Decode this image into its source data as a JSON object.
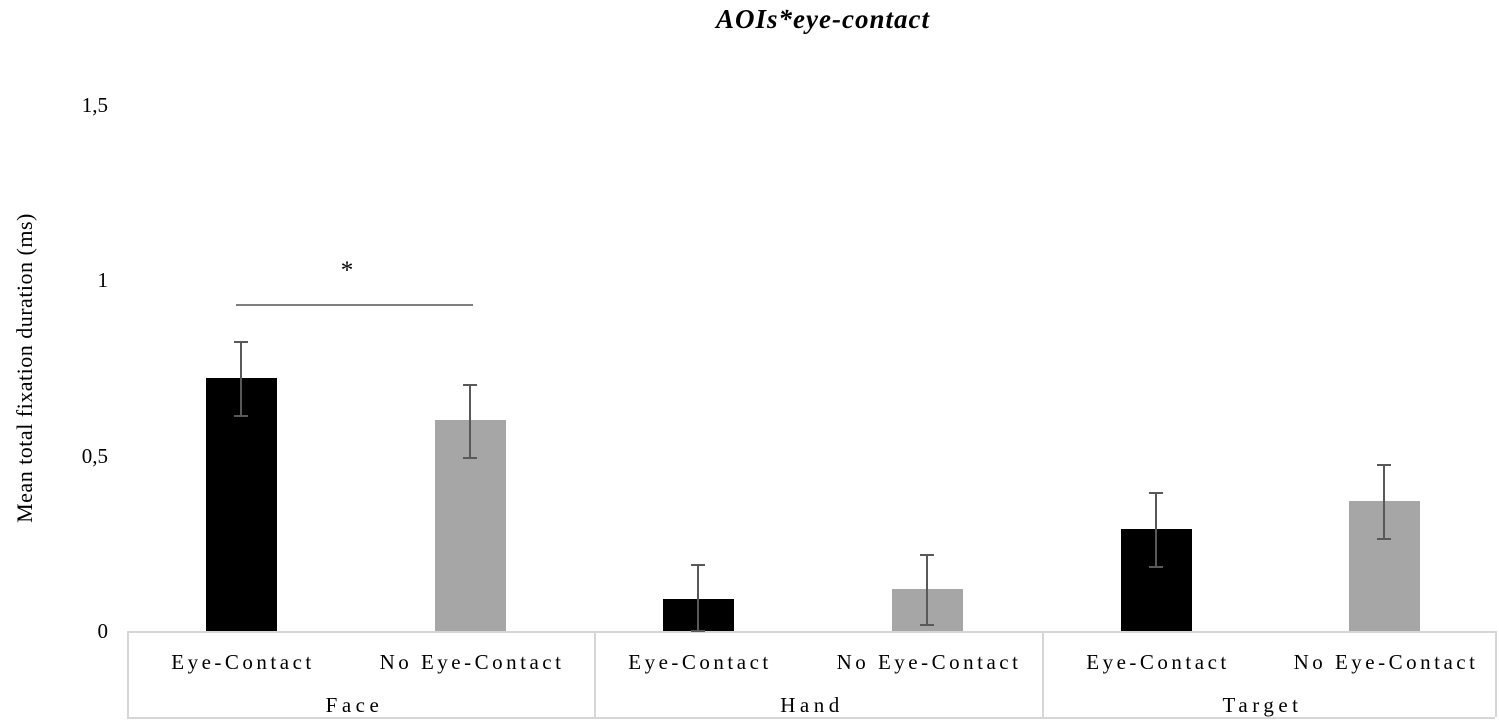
{
  "chart_title": "AOIs*eye-contact",
  "y_axis_title": "Mean total fixation duration (ms)",
  "significance_marker": "*",
  "chart_data": {
    "type": "bar",
    "title": "AOIs*eye-contact",
    "xlabel": "",
    "ylabel": "Mean total fixation duration (ms)",
    "ylim": [
      0,
      1.5
    ],
    "yticks": [
      {
        "value": 0,
        "label": "0"
      },
      {
        "value": 0.5,
        "label": "0,5"
      },
      {
        "value": 1,
        "label": "1"
      },
      {
        "value": 1.5,
        "label": "1,5"
      }
    ],
    "decimal_separator": ",",
    "grid": false,
    "legend_position": "none (series named on x-axis under each bar)",
    "categories": [
      "Face",
      "Hand",
      "Target"
    ],
    "series": [
      {
        "name": "Eye-Contact",
        "color": "#000000",
        "values": [
          0.72,
          0.09,
          0.29
        ],
        "errors": [
          0.105,
          0.1,
          0.105
        ]
      },
      {
        "name": "No Eye-Contact",
        "color": "#a6a6a6",
        "values": [
          0.6,
          0.12,
          0.37
        ],
        "errors": [
          0.105,
          0.1,
          0.105
        ]
      }
    ],
    "error_bars": true,
    "significance": [
      {
        "symbol": "*",
        "category": "Face",
        "between": [
          "Eye-Contact",
          "No Eye-Contact"
        ]
      }
    ]
  }
}
